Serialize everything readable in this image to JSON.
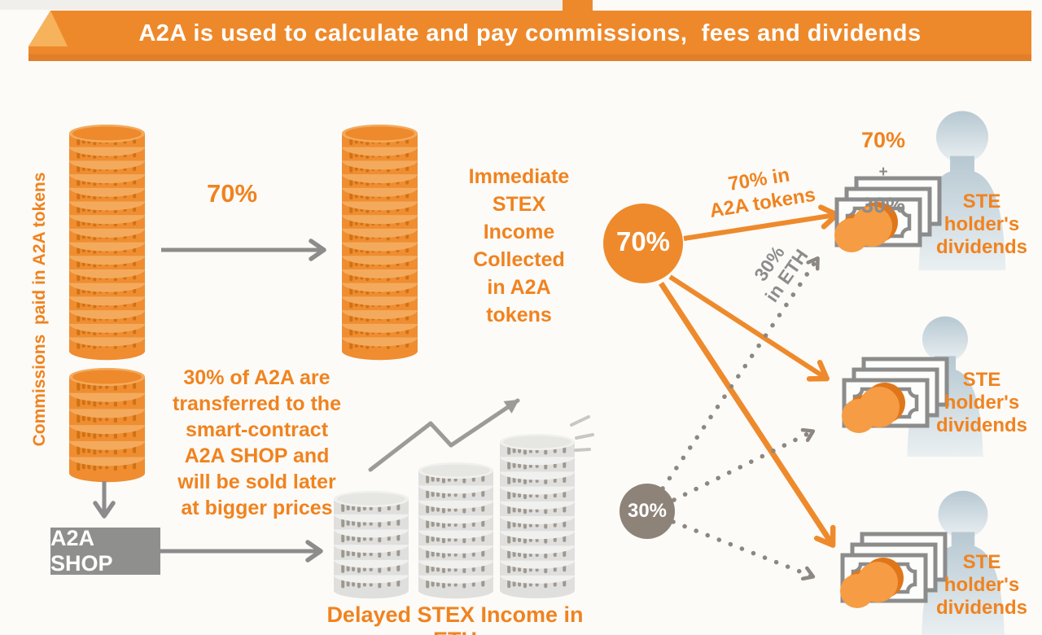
{
  "title": "A2A is used to calculate and pay commissions,  fees and dividends",
  "left_column": {
    "vertical_label": "Commissions  paid in A2A tokens",
    "shop_box": "A2A SHOP"
  },
  "flow": {
    "split_70_label": "70%",
    "immediate_income": "Immediate\nSTEX\nIncome\nCollected\nin A2A\ntokens",
    "shop_transfer": "30% of A2A are\ntransferred to the\nsmart-contract\nA2A SHOP and\nwill be sold later\nat bigger prices",
    "delayed_income": "Delayed STEX Income in ETH"
  },
  "distribution": {
    "circle_70": "70%",
    "circle_30": "30%",
    "arrow_70_label": "70% in\nA2A tokens",
    "arrow_30_label": "30%\nin ETH",
    "sum_top": "70%",
    "sum_plus": "+",
    "sum_bottom": "30%",
    "recipients": [
      {
        "label": "STE\nholder's\ndividends"
      },
      {
        "label": "STE\nholder's\ndividends"
      },
      {
        "label": "STE\nholder's\ndividends"
      }
    ]
  },
  "colors": {
    "accent_orange": "#EE8A2C",
    "text_orange": "#F0831F",
    "gray": "#8C8C8C",
    "taupe_circle": "#8D8379",
    "person_blue_gray": "#BFCDD6",
    "background": "#FCFBF8"
  }
}
